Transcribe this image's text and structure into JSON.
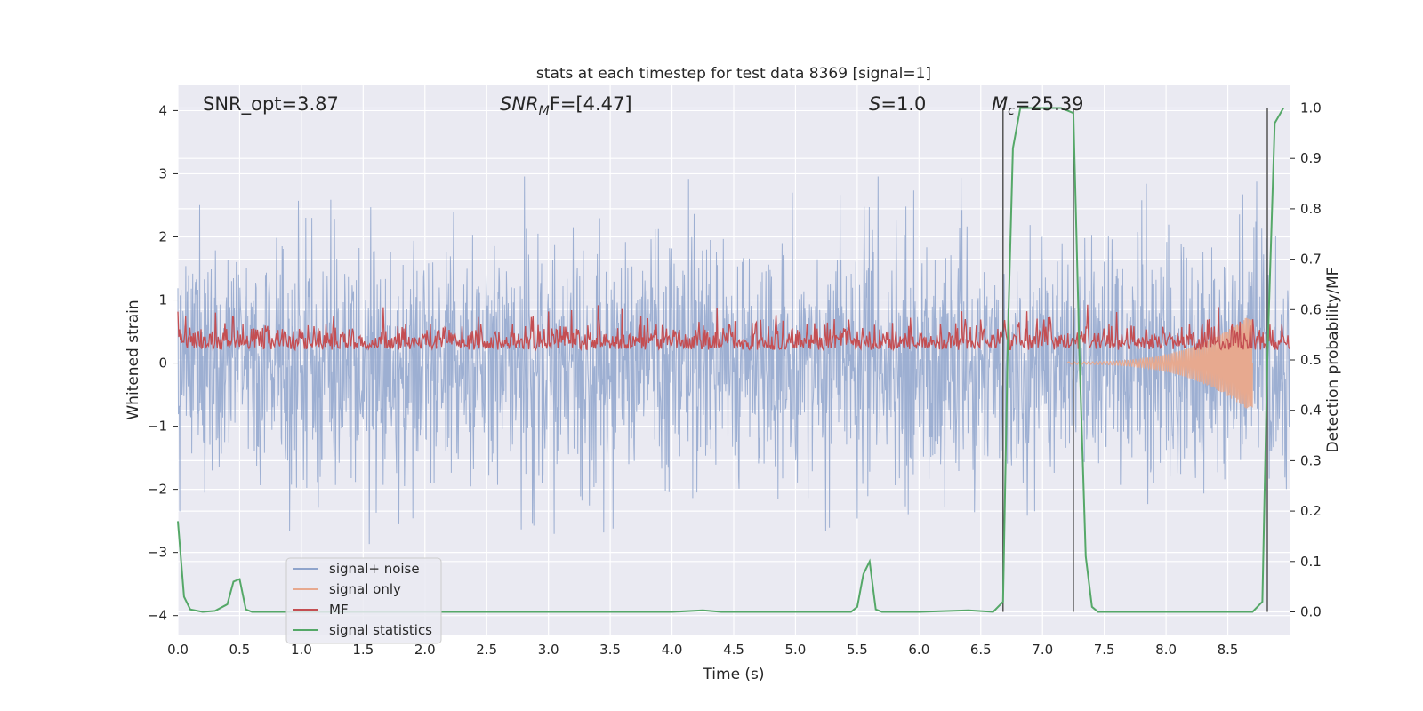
{
  "chart_data": {
    "type": "line",
    "title": "stats at each timestep for test data 8369 [signal=1]",
    "xlabel": "Time (s)",
    "ylabel_left": "Whitened strain",
    "ylabel_right": "Detection probability/MF",
    "xlim": [
      0.0,
      9.0
    ],
    "ylim_left": [
      -4.3,
      4.4
    ],
    "ylim_right": [
      -0.045,
      1.045
    ],
    "xticks": [
      "0.0",
      "0.5",
      "1.0",
      "1.5",
      "2.0",
      "2.5",
      "3.0",
      "3.5",
      "4.0",
      "4.5",
      "5.0",
      "5.5",
      "6.0",
      "6.5",
      "7.0",
      "7.5",
      "8.0",
      "8.5"
    ],
    "yticks_left": [
      "4",
      "3",
      "2",
      "1",
      "0",
      "−1",
      "−2",
      "−3",
      "−4"
    ],
    "yticks_right": [
      "1.0",
      "0.9",
      "0.8",
      "0.7",
      "0.6",
      "0.5",
      "0.4",
      "0.3",
      "0.2",
      "0.1",
      "0.0"
    ],
    "grid": true,
    "legend_position": "lower-left",
    "annotations": {
      "snr_opt": "SNR_opt=3.87",
      "snr_mf_base": "SNR",
      "snr_mf_sub": "M",
      "snr_mf_rest": "F=[4.47]",
      "s_label": "S",
      "s_rest": "=1.0",
      "mc_base": "M",
      "mc_sub": "c",
      "mc_rest": "=25.39"
    },
    "series": [
      {
        "name": "signal+ noise",
        "color": "#8fa4cc",
        "description_range": [
          -3.6,
          4.0
        ]
      },
      {
        "name": "signal only",
        "color": "#e7a98f"
      },
      {
        "name": "MF",
        "color": "#c44e52"
      },
      {
        "name": "signal statistics",
        "color": "#55a868",
        "x": [
          0.0,
          0.05,
          0.1,
          0.2,
          0.3,
          0.4,
          0.45,
          0.5,
          0.55,
          0.6,
          0.8,
          1.5,
          2.5,
          3.5,
          4.0,
          4.25,
          4.4,
          5.0,
          5.45,
          5.5,
          5.55,
          5.6,
          5.65,
          5.7,
          6.0,
          6.4,
          6.6,
          6.68,
          6.72,
          6.76,
          6.82,
          7.0,
          7.15,
          7.25,
          7.3,
          7.35,
          7.4,
          7.45,
          8.0,
          8.7,
          8.78,
          8.82,
          8.88,
          8.95
        ],
        "y": [
          0.18,
          0.03,
          0.005,
          0.0,
          0.002,
          0.015,
          0.06,
          0.065,
          0.005,
          0.0,
          0.0,
          0.0,
          0.0,
          0.0,
          0.0,
          0.003,
          0.0,
          0.0,
          0.0,
          0.01,
          0.075,
          0.1,
          0.005,
          0.0,
          0.0,
          0.003,
          0.0,
          0.02,
          0.55,
          0.92,
          1.0,
          1.0,
          1.0,
          0.99,
          0.5,
          0.11,
          0.01,
          0.0,
          0.0,
          0.0,
          0.02,
          0.5,
          0.97,
          1.0
        ]
      }
    ],
    "vertical_lines_x": [
      6.68,
      7.25,
      8.82
    ]
  }
}
